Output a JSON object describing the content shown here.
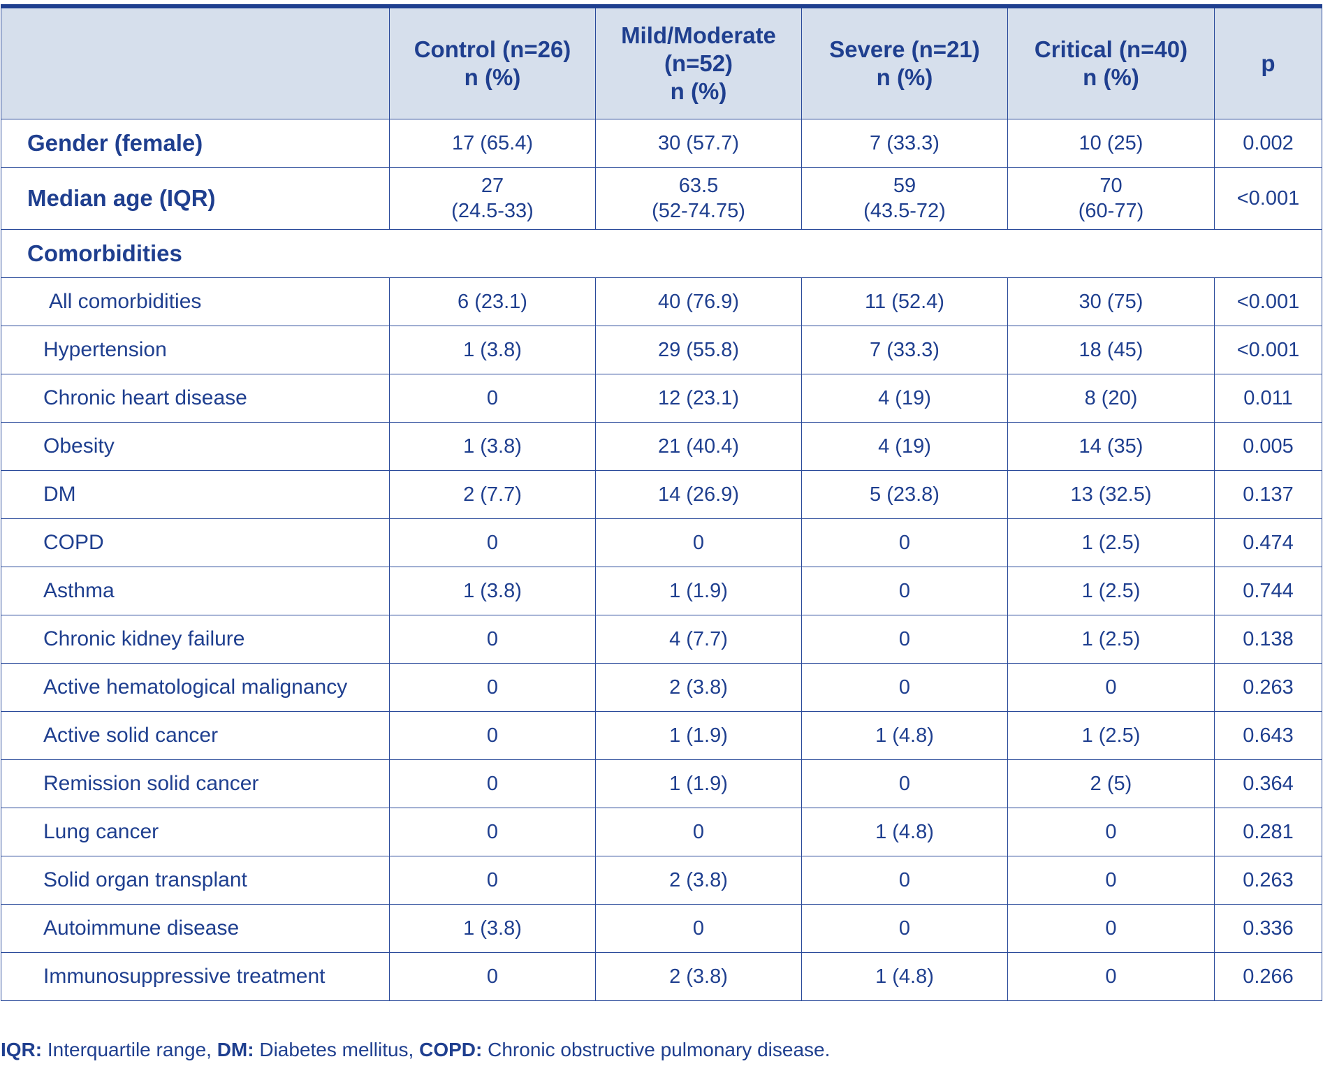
{
  "header": {
    "col0": "",
    "control": [
      "Control (n=26)",
      "n (%)"
    ],
    "mild": [
      "Mild/Moderate",
      "(n=52)",
      "n (%)"
    ],
    "severe": [
      "Severe (n=21)",
      "n (%)"
    ],
    "critical": [
      "Critical (n=40)",
      "n (%)"
    ],
    "p": "p"
  },
  "rows": {
    "gender": {
      "label": "Gender (female)",
      "control": "17 (65.4)",
      "mild": "30 (57.7)",
      "severe": "7 (33.3)",
      "critical": "10 (25)",
      "p": "0.002"
    },
    "age": {
      "label": "Median age (IQR)",
      "control": [
        "27",
        "(24.5-33)"
      ],
      "mild": [
        "63.5",
        "(52-74.75)"
      ],
      "severe": [
        "59",
        "(43.5-72)"
      ],
      "critical": [
        "70",
        "(60-77)"
      ],
      "p": "<0.001"
    },
    "comorbidities_heading": "Comorbidities",
    "items": [
      {
        "label": "All comorbidities",
        "control": "6 (23.1)",
        "mild": "40 (76.9)",
        "severe": "11 (52.4)",
        "critical": "30 (75)",
        "p": "<0.001"
      },
      {
        "label": "Hypertension",
        "control": "1 (3.8)",
        "mild": "29 (55.8)",
        "severe": "7 (33.3)",
        "critical": "18 (45)",
        "p": "<0.001"
      },
      {
        "label": "Chronic heart disease",
        "control": "0",
        "mild": "12 (23.1)",
        "severe": "4 (19)",
        "critical": "8 (20)",
        "p": "0.011"
      },
      {
        "label": "Obesity",
        "control": "1 (3.8)",
        "mild": "21 (40.4)",
        "severe": "4 (19)",
        "critical": "14 (35)",
        "p": "0.005"
      },
      {
        "label": "DM",
        "control": "2 (7.7)",
        "mild": "14 (26.9)",
        "severe": "5 (23.8)",
        "critical": "13 (32.5)",
        "p": "0.137"
      },
      {
        "label": "COPD",
        "control": "0",
        "mild": "0",
        "severe": "0",
        "critical": "1 (2.5)",
        "p": "0.474"
      },
      {
        "label": "Asthma",
        "control": "1 (3.8)",
        "mild": "1 (1.9)",
        "severe": "0",
        "critical": "1 (2.5)",
        "p": "0.744"
      },
      {
        "label": "Chronic kidney failure",
        "control": "0",
        "mild": "4 (7.7)",
        "severe": "0",
        "critical": "1 (2.5)",
        "p": "0.138"
      },
      {
        "label": "Active hematological malignancy",
        "control": "0",
        "mild": "2 (3.8)",
        "severe": "0",
        "critical": "0",
        "p": "0.263"
      },
      {
        "label": "Active solid cancer",
        "control": "0",
        "mild": "1 (1.9)",
        "severe": "1 (4.8)",
        "critical": "1 (2.5)",
        "p": "0.643"
      },
      {
        "label": "Remission solid cancer",
        "control": "0",
        "mild": "1 (1.9)",
        "severe": "0",
        "critical": "2 (5)",
        "p": "0.364"
      },
      {
        "label": "Lung cancer",
        "control": "0",
        "mild": "0",
        "severe": "1 (4.8)",
        "critical": "0",
        "p": "0.281"
      },
      {
        "label": "Solid organ transplant",
        "control": "0",
        "mild": "2 (3.8)",
        "severe": "0",
        "critical": "0",
        "p": "0.263"
      },
      {
        "label": "Autoimmune disease",
        "control": "1 (3.8)",
        "mild": "0",
        "severe": "0",
        "critical": "0",
        "p": "0.336"
      },
      {
        "label": "Immunosuppressive treatment",
        "control": "0",
        "mild": "2 (3.8)",
        "severe": "1 (4.8)",
        "critical": "0",
        "p": "0.266"
      }
    ]
  },
  "footnote": {
    "iqr_abbr": "IQR:",
    "iqr_text": " Interquartile range, ",
    "dm_abbr": "DM:",
    "dm_text": " Diabetes mellitus, ",
    "copd_abbr": "COPD:",
    "copd_text": " Chronic obstructive pulmonary disease."
  }
}
